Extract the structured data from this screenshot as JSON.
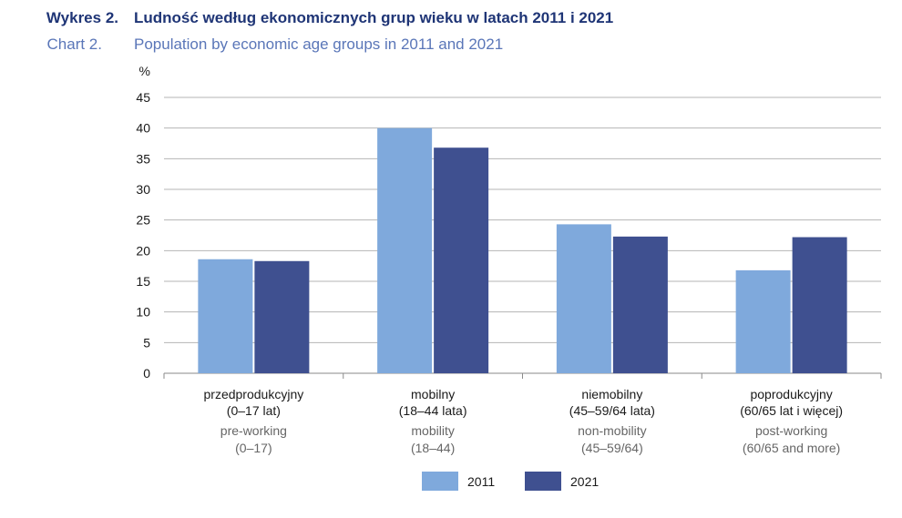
{
  "header": {
    "pl_label": "Wykres 2.",
    "pl_title": "Ludność według ekonomicznych grup wieku w latach 2011 i 2021",
    "en_label": "Chart 2.",
    "en_title": "Population by economic age groups in 2011 and 2021"
  },
  "colors": {
    "s2011": "#7fa9dc",
    "s2021": "#3f5090",
    "grid": "#b5b5b5",
    "axis": "#8a8a8a"
  },
  "chart_data": {
    "type": "bar",
    "ylabel": "%",
    "ylim": [
      0,
      45
    ],
    "yticks": [
      0,
      5,
      10,
      15,
      20,
      25,
      30,
      35,
      40,
      45
    ],
    "categories": [
      {
        "pl1": "przedprodukcyjny",
        "pl2": "(0–17 lat)",
        "en1": "pre-working",
        "en2": "(0–17)"
      },
      {
        "pl1": "mobilny",
        "pl2": "(18–44 lata)",
        "en1": "mobility",
        "en2": "(18–44)"
      },
      {
        "pl1": "niemobilny",
        "pl2": "(45–59/64 lata)",
        "en1": "non-mobility",
        "en2": "(45–59/64)"
      },
      {
        "pl1": "poprodukcyjny",
        "pl2": "(60/65 lat i więcej)",
        "en1": "post-working",
        "en2": "(60/65 and more)"
      }
    ],
    "series": [
      {
        "name": "2011",
        "values": [
          18.6,
          40.0,
          24.3,
          16.8
        ]
      },
      {
        "name": "2021",
        "values": [
          18.3,
          36.8,
          22.3,
          22.2
        ]
      }
    ],
    "legend_position": "bottom-center"
  }
}
